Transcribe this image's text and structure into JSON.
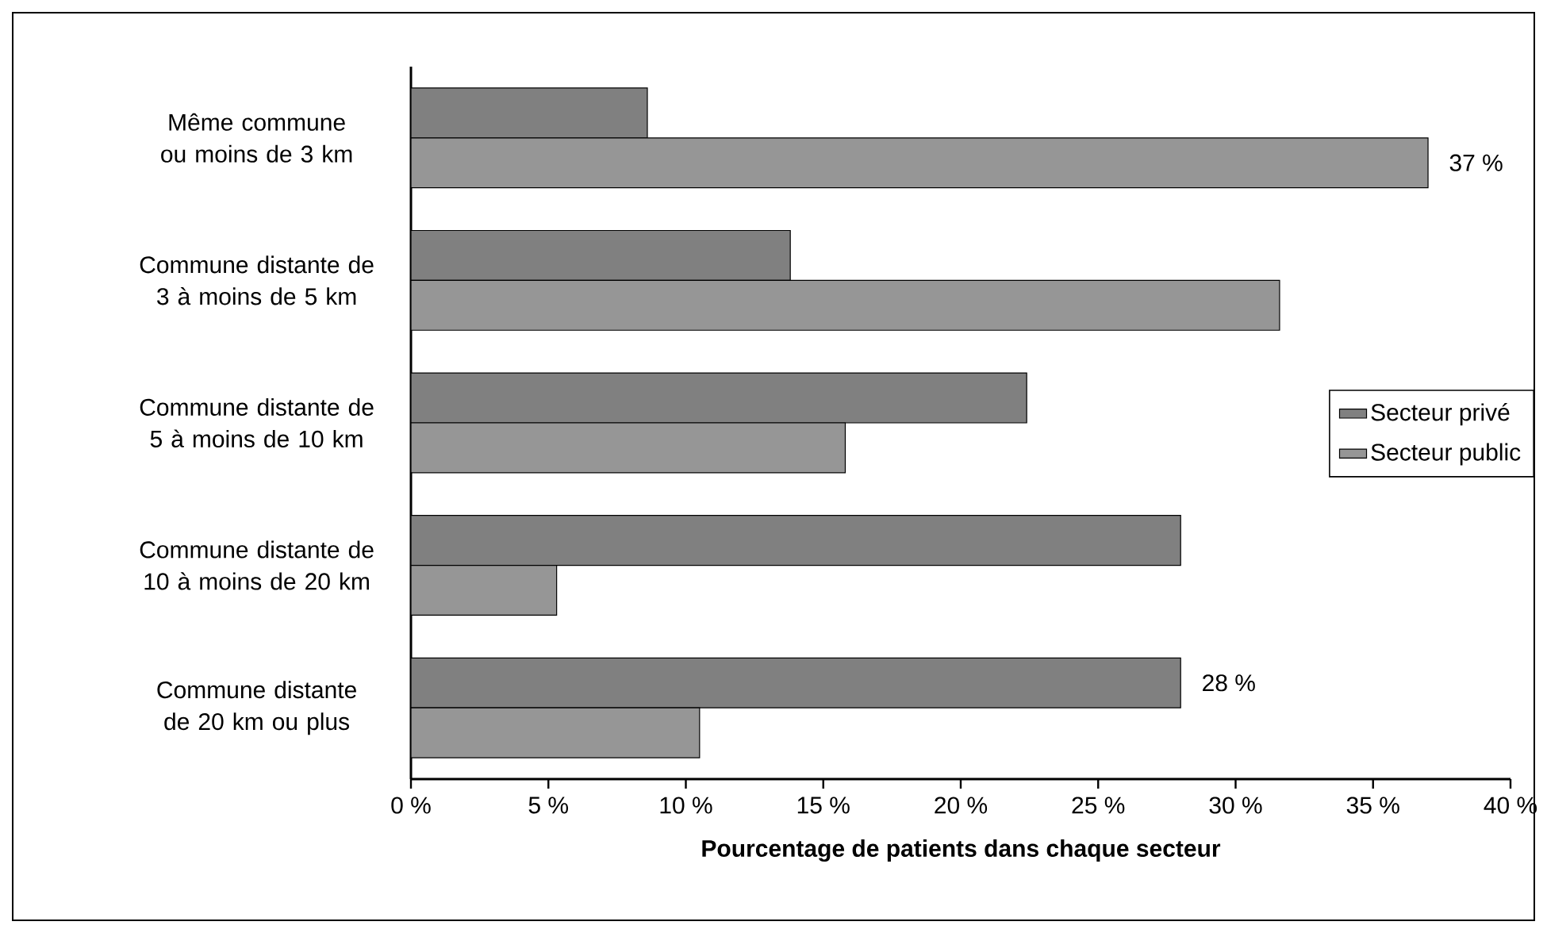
{
  "chart_data": {
    "type": "bar",
    "orientation": "horizontal",
    "xlabel": "Pourcentage de patients dans chaque secteur",
    "categories": [
      "Même commune ou moins de 3 km",
      "Commune distante de 3 à moins de 5 km",
      "Commune distante de 5 à moins de 10 km",
      "Commune distante de 10 à moins de 20 km",
      "Commune distante de 20 km ou plus"
    ],
    "series": [
      {
        "name": "Secteur privé",
        "color": "#808080",
        "values": [
          8.6,
          13.8,
          22.4,
          28,
          28
        ],
        "value_labels": [
          null,
          null,
          null,
          null,
          "28 %"
        ]
      },
      {
        "name": "Secteur public",
        "color": "#969696",
        "values": [
          37,
          31.6,
          15.8,
          5.3,
          10.5
        ],
        "value_labels": [
          "37 %",
          null,
          null,
          null,
          null
        ]
      }
    ],
    "xlim": [
      0,
      40
    ],
    "xticks": [
      {
        "value": 0,
        "label": "0 %"
      },
      {
        "value": 5,
        "label": "5 %"
      },
      {
        "value": 10,
        "label": "10 %"
      },
      {
        "value": 15,
        "label": "15 %"
      },
      {
        "value": 20,
        "label": "20 %"
      },
      {
        "value": 25,
        "label": "25 %"
      },
      {
        "value": 30,
        "label": "30 %"
      },
      {
        "value": 35,
        "label": "35 %"
      },
      {
        "value": 40,
        "label": "40 %"
      }
    ],
    "grid": false,
    "legend": "right"
  }
}
